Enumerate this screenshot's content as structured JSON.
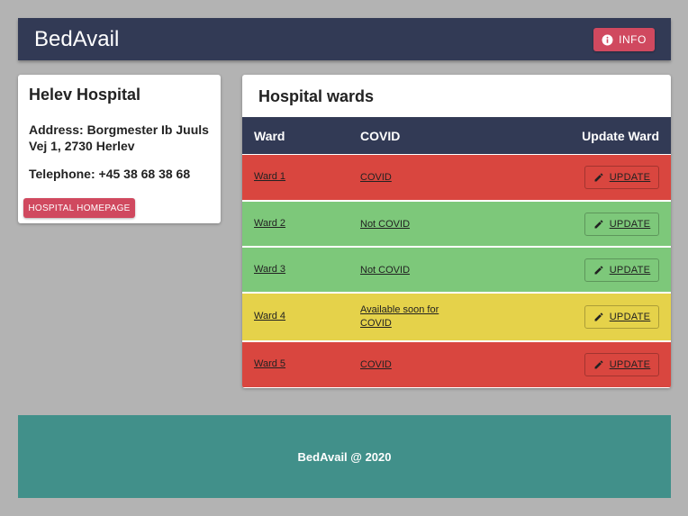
{
  "header": {
    "title": "BedAvail",
    "button": "INFO"
  },
  "hospital": {
    "name": "Helev Hospital",
    "address": "Address: Borgmester Ib Juuls Vej 1, 2730 Herlev",
    "telephone": "Telephone: +45 38 68 38 68",
    "button": "HOSPITAL HOMEPAGE"
  },
  "wards": {
    "title": "Hospital wards",
    "columns": [
      "Ward",
      "COVID",
      "Update Ward"
    ],
    "rows": [
      {
        "ward": "Ward 1",
        "status": "COVID",
        "action": "UPDATE",
        "color": "#d9463f"
      },
      {
        "ward": "Ward 2",
        "status": "Not COVID",
        "action": "UPDATE",
        "color": "#7dc87a"
      },
      {
        "ward": "Ward 3",
        "status": "Not COVID",
        "action": "UPDATE",
        "color": "#7dc87a"
      },
      {
        "ward": "Ward 4",
        "status": "Available soon for COVID",
        "action": "UPDATE",
        "color": "#e5d24a"
      },
      {
        "ward": "Ward 5",
        "status": "COVID",
        "action": "UPDATE",
        "color": "#d9463f"
      }
    ]
  },
  "footer": {
    "text": "BedAvail @ 2020"
  }
}
